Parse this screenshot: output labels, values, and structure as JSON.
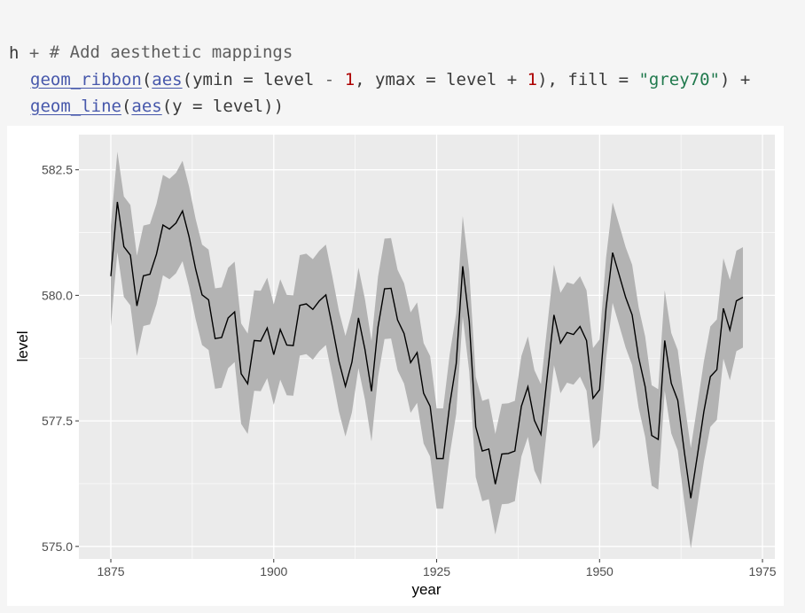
{
  "code": {
    "comment": "# Add aesthetic mappings",
    "line2_obj": "h",
    "line2_op": " +",
    "line3_fn": "geom_ribbon",
    "line3_open": "(",
    "line3_aes": "aes",
    "line3_args_a": "(ymin = level ",
    "line3_minus": "-",
    "line3_num1": "1",
    "line3_args_b": ", ymax = level + ",
    "line3_num2": "1",
    "line3_args_c": "), fill = ",
    "line3_str": "\"grey70\"",
    "line3_close": ") +",
    "line4_fn": "geom_line",
    "line4_open": "(",
    "line4_aes": "aes",
    "line4_args": "(y = level))"
  },
  "chart_data": {
    "type": "line",
    "title": "",
    "xlabel": "year",
    "ylabel": "level",
    "xlim": [
      1870.1,
      1976.9
    ],
    "ylim": [
      574.75,
      583.2
    ],
    "xticks": [
      1875,
      1900,
      1925,
      1950,
      1975
    ],
    "yticks": [
      575.0,
      577.5,
      580.0,
      582.5
    ],
    "ytick_labels": [
      "575.0",
      "577.5",
      "580.0",
      "582.5"
    ],
    "grid": true,
    "ribbon": {
      "lower_offset": -1,
      "upper_offset": 1,
      "fill": "#b3b3b3"
    },
    "line_color": "#000000",
    "panel_bg": "#ebebeb",
    "x": [
      1875,
      1876,
      1877,
      1878,
      1879,
      1880,
      1881,
      1882,
      1883,
      1884,
      1885,
      1886,
      1887,
      1888,
      1889,
      1890,
      1891,
      1892,
      1893,
      1894,
      1895,
      1896,
      1897,
      1898,
      1899,
      1900,
      1901,
      1902,
      1903,
      1904,
      1905,
      1906,
      1907,
      1908,
      1909,
      1910,
      1911,
      1912,
      1913,
      1914,
      1915,
      1916,
      1917,
      1918,
      1919,
      1920,
      1921,
      1922,
      1923,
      1924,
      1925,
      1926,
      1927,
      1928,
      1929,
      1930,
      1931,
      1932,
      1933,
      1934,
      1935,
      1936,
      1937,
      1938,
      1939,
      1940,
      1941,
      1942,
      1943,
      1944,
      1945,
      1946,
      1947,
      1948,
      1949,
      1950,
      1951,
      1952,
      1953,
      1954,
      1955,
      1956,
      1957,
      1958,
      1959,
      1960,
      1961,
      1962,
      1963,
      1964,
      1965,
      1966,
      1967,
      1968,
      1969,
      1970,
      1971,
      1972
    ],
    "y": [
      580.38,
      581.86,
      580.97,
      580.8,
      579.79,
      580.39,
      580.42,
      580.82,
      581.4,
      581.32,
      581.44,
      581.68,
      581.17,
      580.53,
      580.01,
      579.91,
      579.14,
      579.16,
      579.55,
      579.67,
      578.44,
      578.24,
      579.1,
      579.09,
      579.35,
      578.82,
      579.32,
      579.01,
      579.0,
      579.8,
      579.83,
      579.72,
      579.89,
      580.01,
      579.37,
      578.69,
      578.19,
      578.67,
      579.55,
      578.92,
      578.09,
      579.37,
      580.13,
      580.14,
      579.51,
      579.24,
      578.66,
      578.86,
      578.05,
      577.79,
      576.75,
      576.75,
      577.82,
      578.64,
      580.58,
      579.48,
      577.38,
      576.9,
      576.94,
      576.24,
      576.84,
      576.85,
      576.9,
      577.79,
      578.18,
      577.51,
      577.23,
      578.42,
      579.61,
      579.05,
      579.26,
      579.22,
      579.38,
      579.1,
      577.95,
      578.12,
      579.75,
      580.85,
      580.41,
      579.96,
      579.61,
      578.76,
      578.18,
      577.21,
      577.13,
      579.1,
      578.25,
      577.91,
      576.89,
      575.96,
      576.8,
      577.68,
      578.38,
      578.52,
      579.74,
      579.31,
      579.89,
      579.96
    ]
  }
}
